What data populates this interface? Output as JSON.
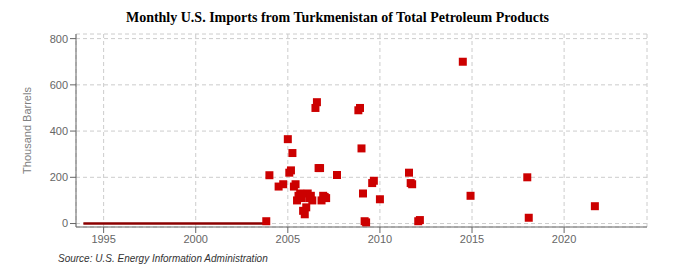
{
  "chart_data": {
    "type": "scatter",
    "title": "Monthly U.S. Imports from Turkmenistan of Total Petroleum Products",
    "ylabel": "Thousand Barrels",
    "source": "Source: U.S. Energy Information Administration",
    "xlim": [
      1993.5,
      2024.5
    ],
    "xticks": [
      1995,
      2000,
      2005,
      2010,
      2015,
      2020
    ],
    "ylim": [
      -15,
      820
    ],
    "yticks": [
      0,
      200,
      400,
      600,
      800
    ],
    "grid": true,
    "series": [
      {
        "type": "line",
        "color": "#8B0000",
        "x": [
          1993.9,
          2004.0
        ],
        "values": [
          0,
          0
        ]
      },
      {
        "type": "scatter",
        "color": "#cc0000",
        "marker": "square",
        "x": [
          2003.83,
          2004.0,
          2004.5,
          2004.75,
          2005.0,
          2005.08,
          2005.17,
          2005.25,
          2005.33,
          2005.42,
          2005.5,
          2005.58,
          2005.67,
          2005.75,
          2005.83,
          2005.92,
          2006.0,
          2006.08,
          2006.17,
          2006.25,
          2006.33,
          2006.5,
          2006.58,
          2006.67,
          2006.75,
          2006.83,
          2006.92,
          2007.0,
          2007.08,
          2007.67,
          2008.83,
          2008.92,
          2009.0,
          2009.08,
          2009.17,
          2009.25,
          2009.58,
          2009.67,
          2010.0,
          2011.58,
          2011.67,
          2011.75,
          2012.08,
          2012.17,
          2014.5,
          2014.92,
          2018.0,
          2018.08,
          2021.67
        ],
        "values": [
          10,
          209,
          160,
          170,
          365,
          220,
          230,
          305,
          160,
          170,
          100,
          120,
          130,
          110,
          55,
          40,
          70,
          130,
          110,
          120,
          100,
          500,
          525,
          240,
          240,
          100,
          120,
          115,
          110,
          210,
          490,
          500,
          325,
          130,
          10,
          5,
          175,
          185,
          105,
          220,
          175,
          170,
          10,
          15,
          700,
          120,
          200,
          25,
          75
        ]
      }
    ]
  }
}
